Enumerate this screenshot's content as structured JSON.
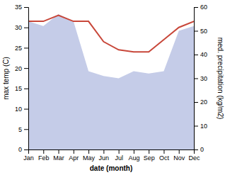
{
  "chart_data": {
    "type": "line",
    "categories": [
      "Jan",
      "Feb",
      "Mar",
      "Apr",
      "May",
      "Jun",
      "Jul",
      "Aug",
      "Sep",
      "Oct",
      "Nov",
      "Dec"
    ],
    "series": [
      {
        "type": "area",
        "color": "#c5cce8",
        "axis": "y2",
        "values": [
          54,
          52,
          57,
          54,
          33,
          31,
          30,
          33,
          32,
          33,
          50,
          52
        ]
      },
      {
        "type": "line",
        "color": "#c8473a",
        "values": [
          31.5,
          31.5,
          33.0,
          31.5,
          31.5,
          26.5,
          24.5,
          24.0,
          24.0,
          27.0,
          30.0,
          31.5
        ]
      }
    ],
    "xlabel": "date (month)",
    "ylabel": "max temp (C)",
    "y2label": "med. precipitation (kg/m2)",
    "ylim": [
      0,
      35
    ],
    "yticks": [
      0,
      5,
      10,
      15,
      20,
      25,
      30,
      35
    ],
    "y2lim": [
      0,
      60
    ],
    "y2ticks": [
      0,
      10,
      20,
      30,
      40,
      50,
      60
    ],
    "grid": false
  }
}
